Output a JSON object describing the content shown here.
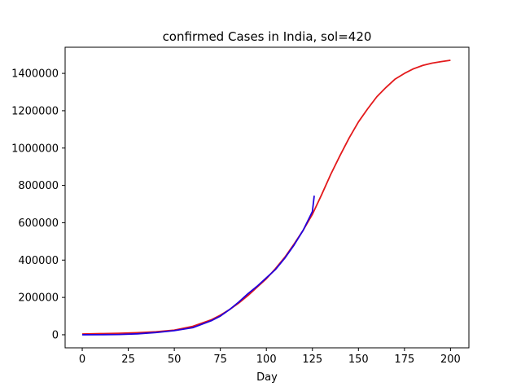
{
  "chart_data": {
    "type": "line",
    "title": "confirmed Cases in India, sol=420",
    "xlabel": "Day",
    "ylabel": "",
    "xlim": [
      -9.3,
      210
    ],
    "ylim": [
      -70000,
      1540000
    ],
    "grid": false,
    "xticks": [
      0,
      25,
      50,
      75,
      100,
      125,
      150,
      175,
      200
    ],
    "yticks": [
      0,
      200000,
      400000,
      600000,
      800000,
      1000000,
      1200000,
      1400000
    ],
    "series": [
      {
        "color": "#e31a1c",
        "x": [
          0,
          10,
          20,
          30,
          40,
          50,
          60,
          70,
          75,
          80,
          85,
          90,
          95,
          100,
          105,
          110,
          115,
          120,
          125,
          130,
          135,
          140,
          145,
          150,
          155,
          160,
          165,
          170,
          175,
          180,
          185,
          190,
          195,
          200
        ],
        "y": [
          4000,
          6000,
          8000,
          11000,
          16000,
          25000,
          45000,
          80000,
          105000,
          135000,
          170000,
          210000,
          255000,
          300000,
          355000,
          415000,
          485000,
          560000,
          645000,
          750000,
          860000,
          960000,
          1055000,
          1140000,
          1210000,
          1275000,
          1325000,
          1370000,
          1400000,
          1425000,
          1443000,
          1455000,
          1463000,
          1470000
        ]
      },
      {
        "color": "#2200dd",
        "x": [
          0,
          10,
          20,
          30,
          40,
          50,
          60,
          70,
          75,
          80,
          85,
          90,
          95,
          100,
          105,
          110,
          115,
          120,
          125,
          126
        ],
        "y": [
          0,
          500,
          1500,
          5000,
          12000,
          22000,
          38000,
          75000,
          100000,
          135000,
          175000,
          220000,
          260000,
          305000,
          350000,
          410000,
          480000,
          560000,
          660000,
          745000
        ]
      }
    ]
  }
}
